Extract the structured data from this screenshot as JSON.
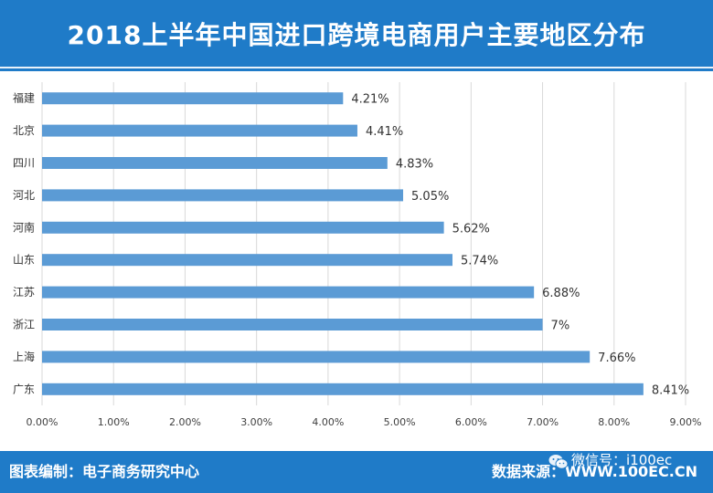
{
  "chart_data": {
    "type": "bar",
    "orientation": "horizontal",
    "title": "2018上半年中国进口跨境电商用户主要地区分布",
    "categories": [
      "福建",
      "北京",
      "四川",
      "河北",
      "河南",
      "山东",
      "江苏",
      "浙江",
      "上海",
      "广东"
    ],
    "values": [
      4.21,
      4.41,
      4.83,
      5.05,
      5.62,
      5.74,
      6.88,
      7.0,
      7.66,
      8.41
    ],
    "data_labels": [
      "4.21%",
      "4.41%",
      "4.83%",
      "5.05%",
      "5.62%",
      "5.74%",
      "6.88%",
      "7%",
      "7.66%",
      "8.41%"
    ],
    "xlim": [
      0,
      9
    ],
    "x_ticks": [
      0,
      1,
      2,
      3,
      4,
      5,
      6,
      7,
      8,
      9
    ],
    "x_tick_labels": [
      "0.00%",
      "1.00%",
      "2.00%",
      "3.00%",
      "4.00%",
      "5.00%",
      "6.00%",
      "7.00%",
      "8.00%",
      "9.00%"
    ],
    "xlabel": "",
    "ylabel": "",
    "grid": true,
    "bar_color": "#5b9bd5"
  },
  "footer": {
    "credit": "图表编制：电子商务研究中心",
    "source": "数据来源：WWW.100EC.CN",
    "watermark": "微信号：i100ec"
  },
  "colors": {
    "header_bg": "#1f7bc8",
    "grid": "#d9d9d9"
  }
}
